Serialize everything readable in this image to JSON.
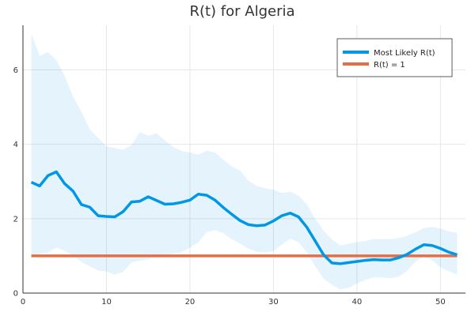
{
  "chart_data": {
    "type": "line",
    "title": "R(t) for Algeria",
    "xlabel": "",
    "ylabel": "",
    "xlim": [
      0,
      53
    ],
    "ylim": [
      0,
      7.2
    ],
    "x_ticks": [
      "0",
      "10",
      "20",
      "30",
      "40",
      "50"
    ],
    "x_tick_values": [
      0,
      10,
      20,
      30,
      40,
      50
    ],
    "y_ticks": [
      "0",
      "2",
      "4",
      "6"
    ],
    "y_tick_values": [
      0,
      2,
      4,
      6
    ],
    "grid": true,
    "legend_position": "top-right",
    "x": [
      1,
      2,
      3,
      4,
      5,
      6,
      7,
      8,
      9,
      10,
      11,
      12,
      13,
      14,
      15,
      16,
      17,
      18,
      19,
      20,
      21,
      22,
      23,
      24,
      25,
      26,
      27,
      28,
      29,
      30,
      31,
      32,
      33,
      34,
      35,
      36,
      37,
      38,
      39,
      40,
      41,
      42,
      43,
      44,
      45,
      46,
      47,
      48,
      49,
      50,
      51,
      52
    ],
    "band": {
      "upper": [
        6.98,
        6.38,
        6.48,
        6.26,
        5.84,
        5.28,
        4.88,
        4.4,
        4.18,
        3.94,
        3.9,
        3.85,
        3.98,
        4.33,
        4.23,
        4.3,
        4.1,
        3.92,
        3.82,
        3.78,
        3.72,
        3.83,
        3.78,
        3.59,
        3.41,
        3.29,
        3.02,
        2.88,
        2.82,
        2.78,
        2.69,
        2.73,
        2.62,
        2.39,
        2.0,
        1.68,
        1.44,
        1.28,
        1.33,
        1.37,
        1.4,
        1.45,
        1.45,
        1.45,
        1.48,
        1.54,
        1.63,
        1.75,
        1.78,
        1.73,
        1.66,
        1.62
      ],
      "lower": [
        1.02,
        1.05,
        1.1,
        1.22,
        1.14,
        1.01,
        0.84,
        0.72,
        0.61,
        0.58,
        0.5,
        0.57,
        0.82,
        0.87,
        0.91,
        1.0,
        1.01,
        1.06,
        1.1,
        1.22,
        1.36,
        1.64,
        1.69,
        1.61,
        1.45,
        1.33,
        1.19,
        1.11,
        1.09,
        1.13,
        1.3,
        1.46,
        1.37,
        1.09,
        0.72,
        0.39,
        0.22,
        0.1,
        0.14,
        0.26,
        0.35,
        0.42,
        0.42,
        0.4,
        0.44,
        0.59,
        0.85,
        0.98,
        0.88,
        0.69,
        0.59,
        0.5
      ],
      "color": "#0097e6",
      "opacity": 0.1
    },
    "series": [
      {
        "name": "Most Likely R(t)",
        "color": "#0098e6",
        "values": [
          2.98,
          2.88,
          3.16,
          3.26,
          2.94,
          2.74,
          2.38,
          2.31,
          2.08,
          2.06,
          2.05,
          2.19,
          2.45,
          2.47,
          2.59,
          2.49,
          2.39,
          2.4,
          2.44,
          2.5,
          2.66,
          2.63,
          2.5,
          2.3,
          2.12,
          1.95,
          1.84,
          1.81,
          1.83,
          1.94,
          2.08,
          2.15,
          2.05,
          1.77,
          1.4,
          1.03,
          0.81,
          0.79,
          0.82,
          0.85,
          0.88,
          0.9,
          0.89,
          0.89,
          0.95,
          1.04,
          1.18,
          1.3,
          1.28,
          1.2,
          1.1,
          1.03
        ]
      },
      {
        "name": "R(t) = 1",
        "color": "#e26f46",
        "values": [
          1,
          1,
          1,
          1,
          1,
          1,
          1,
          1,
          1,
          1,
          1,
          1,
          1,
          1,
          1,
          1,
          1,
          1,
          1,
          1,
          1,
          1,
          1,
          1,
          1,
          1,
          1,
          1,
          1,
          1,
          1,
          1,
          1,
          1,
          1,
          1,
          1,
          1,
          1,
          1,
          1,
          1,
          1,
          1,
          1,
          1,
          1,
          1,
          1,
          1,
          1,
          1
        ]
      }
    ]
  }
}
